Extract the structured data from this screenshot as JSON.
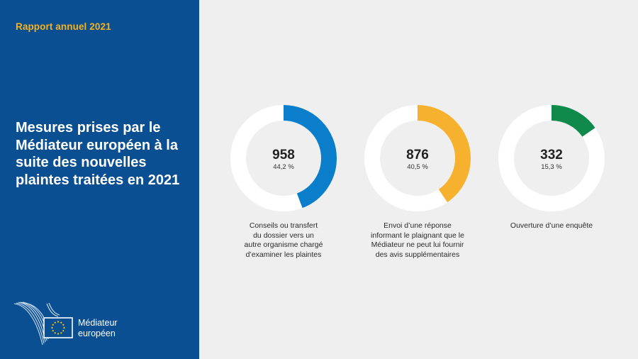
{
  "header": {
    "report_label": "Rapport annuel 2021"
  },
  "sidebar": {
    "title": "Mesures prises par le Médiateur européen à la suite des nouvelles plaintes traitées en 2021",
    "background_color": "#0b4f93",
    "logo": {
      "line1": "Médiateur",
      "line2": "européen"
    }
  },
  "chart_data": {
    "type": "pie",
    "variant": "donut",
    "items": [
      {
        "value": 958,
        "value_label": "958",
        "percent": 44.2,
        "percent_label": "44,2 %",
        "caption": "Conseils ou transfert\ndu dossier vers un\nautre organisme chargé\nd’examiner les plaintes",
        "color": "#0a7ecb"
      },
      {
        "value": 876,
        "value_label": "876",
        "percent": 40.5,
        "percent_label": "40,5 %",
        "caption": "Envoi d’une réponse\ninformant le plaignant que le\nMédiateur ne peut lui fournir\ndes avis supplémentaires",
        "color": "#f6b22e"
      },
      {
        "value": 332,
        "value_label": "332",
        "percent": 15.3,
        "percent_label": "15,3 %",
        "caption": "Ouverture d’une enquête",
        "color": "#0f8a4a"
      }
    ],
    "ring_color": "#ffffff"
  }
}
